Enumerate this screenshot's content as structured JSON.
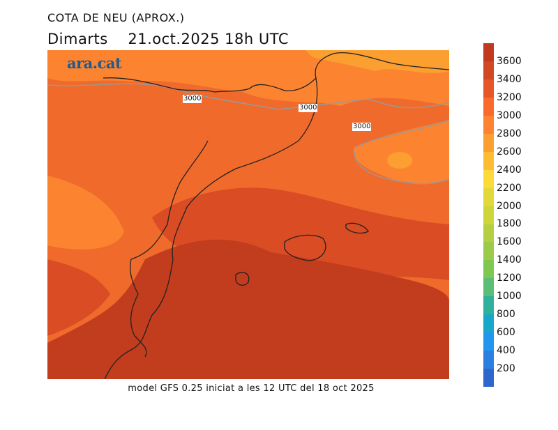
{
  "title": "COTA DE NEU (APROX.)",
  "subtitle_day": "Dimarts",
  "subtitle_date": "21.oct.2025 18h UTC",
  "logo": "ara.cat",
  "contour_labels": [
    "3000",
    "3000",
    "3000"
  ],
  "footer": "model GFS 0.25 iniciat a les 12 UTC del 18 oct 2025",
  "colorbar": {
    "ticks": [
      "3600",
      "3400",
      "3200",
      "3000",
      "2800",
      "2600",
      "2400",
      "2200",
      "2000",
      "1800",
      "1600",
      "1400",
      "1200",
      "1000",
      "800",
      "600",
      "400",
      "200"
    ],
    "colors_top_to_bottom": [
      "#bf3a1e",
      "#d24822",
      "#e65627",
      "#fa6a2b",
      "#fc8430",
      "#fc9f31",
      "#fdbc34",
      "#fcda3a",
      "#e3d83a",
      "#cdd53c",
      "#b5cf44",
      "#9ccb4a",
      "#7ec751",
      "#5abf76",
      "#2fb19b",
      "#19a7c9",
      "#2195f0",
      "#2a80e0",
      "#2f66cc"
    ]
  },
  "map_colors": {
    "bg": "#f06a2c",
    "north": "#fc8430",
    "northeast": "#fc9f31",
    "south": "#c23c1e",
    "mid": "#d94c24"
  }
}
